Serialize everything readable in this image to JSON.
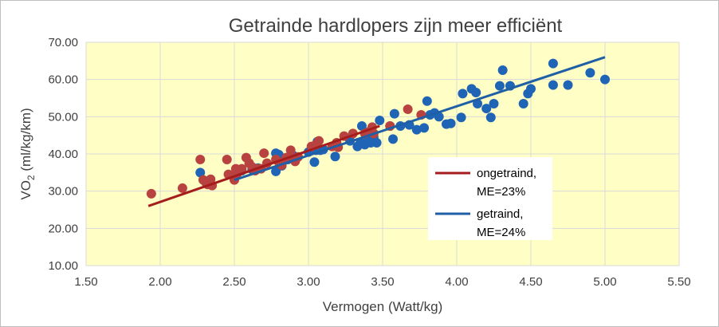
{
  "chart_data": {
    "type": "scatter",
    "title": "Getrainde hardlopers zijn meer efficiënt",
    "xlabel": "Vermogen (Watt/kg)",
    "ylabel_main": "VO",
    "ylabel_sub": "2",
    "ylabel_rest": " (ml/kg/km)",
    "xlim": [
      1.5,
      5.5
    ],
    "ylim": [
      10,
      70
    ],
    "xticks": [
      "1.50",
      "2.00",
      "2.50",
      "3.00",
      "3.50",
      "4.00",
      "4.50",
      "5.00",
      "5.50"
    ],
    "yticks": [
      "10.00",
      "20.00",
      "30.00",
      "40.00",
      "50.00",
      "60.00",
      "70.00"
    ],
    "grid": true,
    "plot_background": "#ffffc5",
    "legend_position": "center-right",
    "series": [
      {
        "name": "getraind,",
        "legend_line2": "ME=24%",
        "color": "#1f5fa6",
        "marker_color": "#2064b6",
        "trend": [
          [
            2.5,
            33.0
          ],
          [
            5.0,
            66.0
          ]
        ],
        "points": [
          [
            2.27,
            35.0
          ],
          [
            2.55,
            35.5
          ],
          [
            2.62,
            35.8
          ],
          [
            2.66,
            36.2
          ],
          [
            2.78,
            35.3
          ],
          [
            2.78,
            40.2
          ],
          [
            2.8,
            39.8
          ],
          [
            2.82,
            36.8
          ],
          [
            2.86,
            38.5
          ],
          [
            2.9,
            39.5
          ],
          [
            3.04,
            37.8
          ],
          [
            3.05,
            41.0
          ],
          [
            3.06,
            43.3
          ],
          [
            3.08,
            41.0
          ],
          [
            3.1,
            41.2
          ],
          [
            3.18,
            39.3
          ],
          [
            3.28,
            43.5
          ],
          [
            3.33,
            42.0
          ],
          [
            3.35,
            43.0
          ],
          [
            3.36,
            47.5
          ],
          [
            3.38,
            42.5
          ],
          [
            3.4,
            44.0
          ],
          [
            3.42,
            43.0
          ],
          [
            3.44,
            44.5
          ],
          [
            3.46,
            43.0
          ],
          [
            3.48,
            49.0
          ],
          [
            3.55,
            47.5
          ],
          [
            3.57,
            44.0
          ],
          [
            3.58,
            50.8
          ],
          [
            3.62,
            47.5
          ],
          [
            3.68,
            47.8
          ],
          [
            3.73,
            46.5
          ],
          [
            3.78,
            47.0
          ],
          [
            3.8,
            54.2
          ],
          [
            3.82,
            50.5
          ],
          [
            3.85,
            51.0
          ],
          [
            3.88,
            50.0
          ],
          [
            3.93,
            48.0
          ],
          [
            3.96,
            48.2
          ],
          [
            4.03,
            49.8
          ],
          [
            4.04,
            56.2
          ],
          [
            4.1,
            57.5
          ],
          [
            4.13,
            56.5
          ],
          [
            4.14,
            53.5
          ],
          [
            4.2,
            52.2
          ],
          [
            4.23,
            49.8
          ],
          [
            4.25,
            53.5
          ],
          [
            4.29,
            58.3
          ],
          [
            4.31,
            62.5
          ],
          [
            4.36,
            58.3
          ],
          [
            4.45,
            53.5
          ],
          [
            4.48,
            56.2
          ],
          [
            4.5,
            57.5
          ],
          [
            4.65,
            64.3
          ],
          [
            4.65,
            58.5
          ],
          [
            4.75,
            58.5
          ],
          [
            4.9,
            61.8
          ],
          [
            5.0,
            60.0
          ],
          [
            3.0,
            40.5
          ]
        ]
      },
      {
        "name": "ongetraind,",
        "legend_line2": "ME=23%",
        "color": "#a51c1c",
        "marker_color": "#b8423f",
        "trend": [
          [
            1.92,
            26.0
          ],
          [
            3.48,
            47.5
          ]
        ],
        "points": [
          [
            1.94,
            29.3
          ],
          [
            2.15,
            30.8
          ],
          [
            2.27,
            38.5
          ],
          [
            2.29,
            33.0
          ],
          [
            2.31,
            32.2
          ],
          [
            2.32,
            31.8
          ],
          [
            2.34,
            33.2
          ],
          [
            2.35,
            31.5
          ],
          [
            2.45,
            38.5
          ],
          [
            2.46,
            34.5
          ],
          [
            2.5,
            33.0
          ],
          [
            2.51,
            36.0
          ],
          [
            2.52,
            34.8
          ],
          [
            2.55,
            36.0
          ],
          [
            2.58,
            39.0
          ],
          [
            2.6,
            37.5
          ],
          [
            2.62,
            36.5
          ],
          [
            2.64,
            35.5
          ],
          [
            2.66,
            36.0
          ],
          [
            2.68,
            36.0
          ],
          [
            2.7,
            40.2
          ],
          [
            2.72,
            37.5
          ],
          [
            2.78,
            38.5
          ],
          [
            2.8,
            37.8
          ],
          [
            2.82,
            37.0
          ],
          [
            2.85,
            39.0
          ],
          [
            2.88,
            41.0
          ],
          [
            2.89,
            38.8
          ],
          [
            2.91,
            38.0
          ],
          [
            2.93,
            39.2
          ],
          [
            3.02,
            42.0
          ],
          [
            3.05,
            42.5
          ],
          [
            3.07,
            43.5
          ],
          [
            3.16,
            42.0
          ],
          [
            3.19,
            43.0
          ],
          [
            3.2,
            41.8
          ],
          [
            3.24,
            44.8
          ],
          [
            3.3,
            45.5
          ],
          [
            3.38,
            45.5
          ],
          [
            3.41,
            46.0
          ],
          [
            3.43,
            47.2
          ],
          [
            3.44,
            45.5
          ],
          [
            3.55,
            47.5
          ],
          [
            3.67,
            52.0
          ],
          [
            3.76,
            50.5
          ]
        ]
      }
    ]
  }
}
